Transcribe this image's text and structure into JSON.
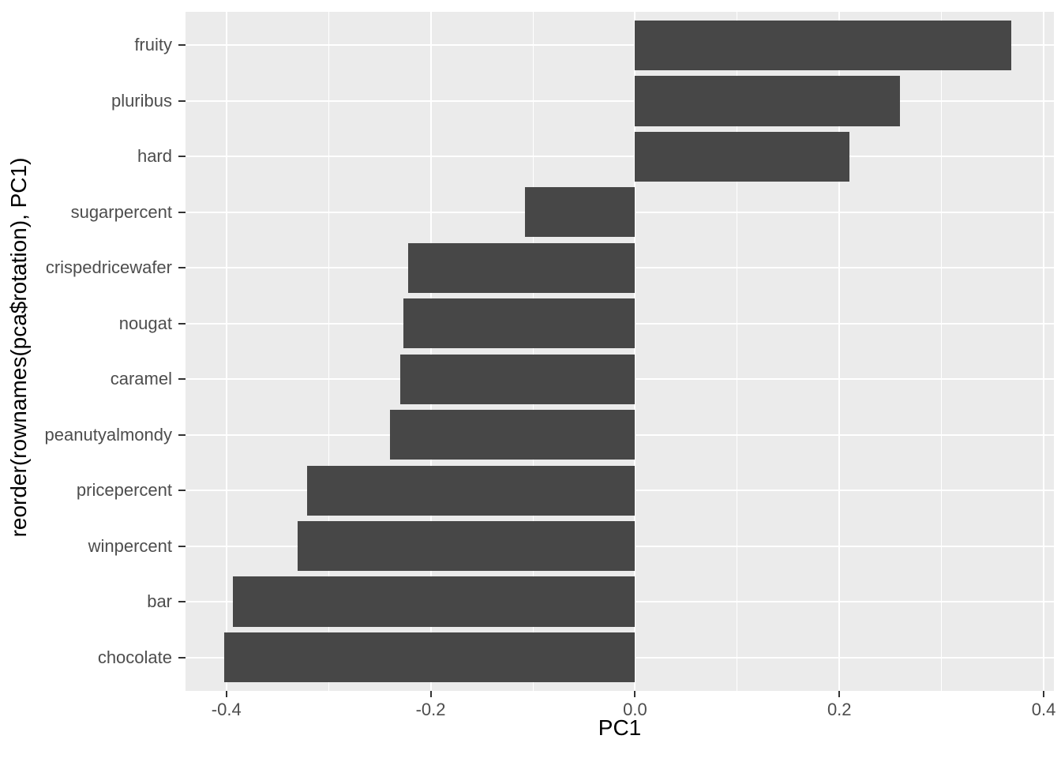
{
  "figure": {
    "x_axis_title": "PC1",
    "y_axis_title": "reorder(rownames(pca$rotation), PC1)"
  },
  "chart_data": {
    "type": "bar",
    "orientation": "horizontal",
    "title": "",
    "xlabel": "PC1",
    "ylabel": "reorder(rownames(pca$rotation), PC1)",
    "categories": [
      "fruity",
      "pluribus",
      "hard",
      "sugarpercent",
      "crispedricewafer",
      "nougat",
      "caramel",
      "peanutyalmondy",
      "pricepercent",
      "winpercent",
      "bar",
      "chocolate"
    ],
    "values": [
      0.368,
      0.259,
      0.21,
      -0.108,
      -0.222,
      -0.227,
      -0.23,
      -0.24,
      -0.321,
      -0.33,
      -0.394,
      -0.402
    ],
    "xlim": [
      -0.44,
      0.41
    ],
    "x_major_gridlines": [
      -0.4,
      -0.2,
      0.0,
      0.2,
      0.4
    ],
    "x_minor_gridlines": [
      -0.3,
      -0.1,
      0.1,
      0.3
    ],
    "x_tick_values": [
      -0.4,
      -0.2,
      0.0,
      0.2,
      0.4
    ],
    "x_tick_labels": [
      "-0.4",
      "-0.2",
      "0.0",
      "0.2",
      "0.4"
    ],
    "bar_width_fraction": 0.9,
    "band_expansion": 0.6,
    "grid": "major-and-minor",
    "legend": "none",
    "theme": {
      "page_bg": "#FFFFFF",
      "panel_bg": "#EBEBEB",
      "grid_color": "#FFFFFF",
      "bar_fill": "#474747",
      "tick_label_color": "#4D4D4D",
      "tick_mark_color": "#333333",
      "axis_title_color": "#000000"
    }
  }
}
